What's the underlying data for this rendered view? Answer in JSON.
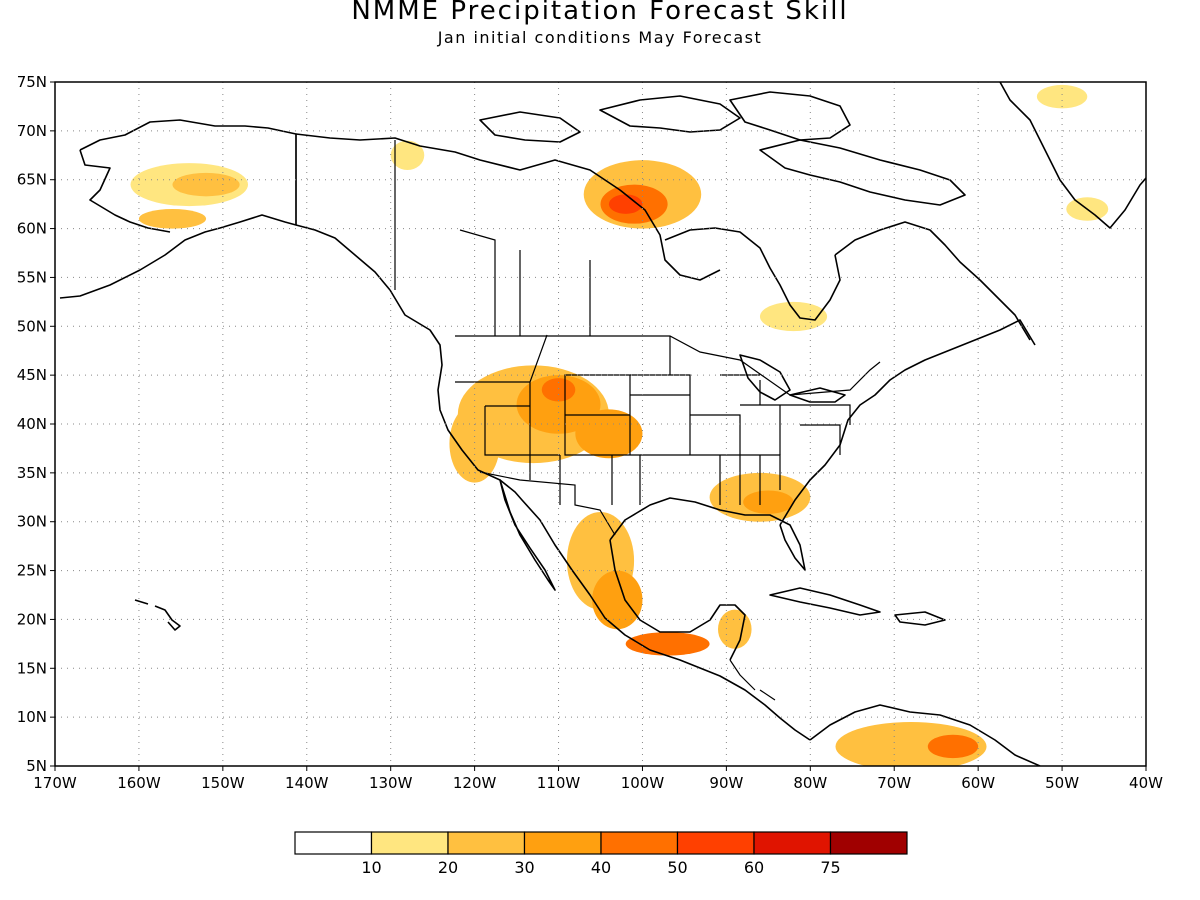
{
  "title": "NMME Precipitation Forecast Skill",
  "subtitle": "Jan initial conditions  May Forecast",
  "map": {
    "lon_range": [
      -170,
      -40
    ],
    "lat_range": [
      5,
      75
    ],
    "lat_labels": [
      "75N",
      "70N",
      "65N",
      "60N",
      "55N",
      "50N",
      "45N",
      "40N",
      "35N",
      "30N",
      "25N",
      "20N",
      "15N",
      "10N",
      "5N"
    ],
    "lon_labels": [
      "170W",
      "160W",
      "150W",
      "140W",
      "130W",
      "120W",
      "110W",
      "100W",
      "90W",
      "80W",
      "70W",
      "60W",
      "50W",
      "40W"
    ],
    "gridlines": "dotted"
  },
  "legend": {
    "colors": [
      "#ffffff",
      "#ffe680",
      "#ffc040",
      "#ffa010",
      "#ff7000",
      "#ff4000",
      "#e01400",
      "#a00000"
    ],
    "labels": [
      "10",
      "20",
      "30",
      "40",
      "50",
      "60",
      "75"
    ]
  },
  "skill_regions": [
    {
      "name": "alaska-west",
      "lon": -154,
      "lat": 64.5,
      "rx": 7,
      "ry": 2.2,
      "level": 1
    },
    {
      "name": "alaska-west-core",
      "lon": -152,
      "lat": 64.5,
      "rx": 4,
      "ry": 1.2,
      "level": 2
    },
    {
      "name": "alaska-south",
      "lon": -156,
      "lat": 61,
      "rx": 4,
      "ry": 1,
      "level": 2
    },
    {
      "name": "hudson-north",
      "lon": -100,
      "lat": 63.5,
      "rx": 7,
      "ry": 3.5,
      "level": 2
    },
    {
      "name": "hudson-core",
      "lon": -101,
      "lat": 62.5,
      "rx": 4,
      "ry": 2,
      "level": 4
    },
    {
      "name": "hudson-peak",
      "lon": -102,
      "lat": 62.5,
      "rx": 2,
      "ry": 1,
      "level": 5
    },
    {
      "name": "nw-territories",
      "lon": -128,
      "lat": 67.5,
      "rx": 2,
      "ry": 1.5,
      "level": 1
    },
    {
      "name": "quebec-south",
      "lon": -82,
      "lat": 51,
      "rx": 4,
      "ry": 1.5,
      "level": 1
    },
    {
      "name": "greenland-north",
      "lon": -50,
      "lat": 73.5,
      "rx": 3,
      "ry": 1.2,
      "level": 1
    },
    {
      "name": "greenland-south",
      "lon": -47,
      "lat": 62,
      "rx": 2.5,
      "ry": 1.2,
      "level": 1
    },
    {
      "name": "us-west",
      "lon": -113,
      "lat": 41,
      "rx": 9,
      "ry": 5,
      "level": 2
    },
    {
      "name": "us-west-core",
      "lon": -110,
      "lat": 42,
      "rx": 5,
      "ry": 3,
      "level": 3
    },
    {
      "name": "wyoming-peak",
      "lon": -110,
      "lat": 43.5,
      "rx": 2,
      "ry": 1.2,
      "level": 4
    },
    {
      "name": "california",
      "lon": -120,
      "lat": 38,
      "rx": 3,
      "ry": 4,
      "level": 2
    },
    {
      "name": "colorado",
      "lon": -104,
      "lat": 39,
      "rx": 4,
      "ry": 2.5,
      "level": 3
    },
    {
      "name": "southeast-us",
      "lon": -86,
      "lat": 32.5,
      "rx": 6,
      "ry": 2.5,
      "level": 2
    },
    {
      "name": "southeast-us-core",
      "lon": -85,
      "lat": 32,
      "rx": 3,
      "ry": 1.2,
      "level": 3
    },
    {
      "name": "mexico-north",
      "lon": -105,
      "lat": 26,
      "rx": 4,
      "ry": 5,
      "level": 2
    },
    {
      "name": "mexico-central",
      "lon": -103,
      "lat": 22,
      "rx": 3,
      "ry": 3,
      "level": 3
    },
    {
      "name": "mexico-south",
      "lon": -97,
      "lat": 17.5,
      "rx": 5,
      "ry": 1.2,
      "level": 4
    },
    {
      "name": "yucatan",
      "lon": -89,
      "lat": 19,
      "rx": 2,
      "ry": 2,
      "level": 2
    },
    {
      "name": "venezuela",
      "lon": -68,
      "lat": 7,
      "rx": 9,
      "ry": 2.5,
      "level": 2
    },
    {
      "name": "venezuela-core",
      "lon": -63,
      "lat": 7,
      "rx": 3,
      "ry": 1.2,
      "level": 4
    }
  ]
}
